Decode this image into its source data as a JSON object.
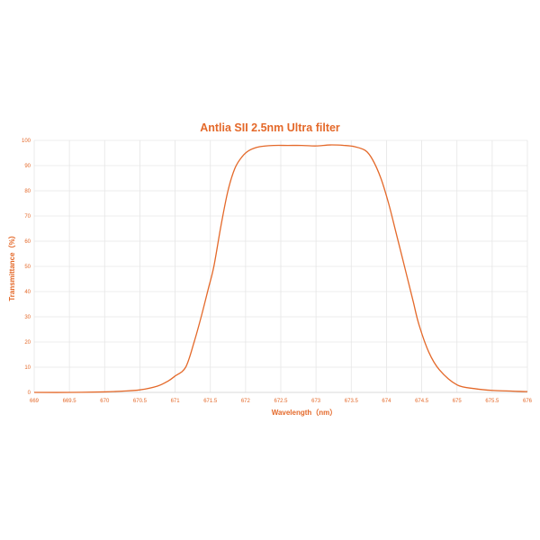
{
  "chart_data": {
    "type": "line",
    "title": "Antlia SII 2.5nm Ultra filter",
    "xlabel": "Wavelength（nm）",
    "ylabel": "Transmittance（%）",
    "xlim": [
      669,
      676
    ],
    "ylim": [
      0,
      100
    ],
    "grid": true,
    "legend": null,
    "x_ticks": [
      "669",
      "669.5",
      "670",
      "670.5",
      "671",
      "671.5",
      "672",
      "672.5",
      "673",
      "673.5",
      "674",
      "674.5",
      "675",
      "675.5",
      "676"
    ],
    "y_ticks": [
      "0",
      "10",
      "20",
      "30",
      "40",
      "50",
      "60",
      "70",
      "80",
      "90",
      "100"
    ],
    "series": [
      {
        "name": "Transmittance",
        "color": "#e4692a",
        "x": [
          669,
          669.5,
          670,
          670.25,
          670.5,
          670.75,
          670.9,
          671,
          671.15,
          671.27,
          671.37,
          671.47,
          671.55,
          671.65,
          671.75,
          671.85,
          671.95,
          672.05,
          672.2,
          672.4,
          672.6,
          672.8,
          673,
          673.2,
          673.4,
          673.55,
          673.7,
          673.8,
          673.92,
          674.03,
          674.13,
          674.22,
          674.3,
          674.38,
          674.46,
          674.6,
          674.75,
          675,
          675.25,
          675.5,
          676
        ],
        "y": [
          0,
          0,
          0.2,
          0.5,
          1,
          2.5,
          4.5,
          6.5,
          10,
          20,
          30,
          41,
          50,
          66,
          80,
          89,
          93.5,
          96,
          97.5,
          98,
          98,
          98,
          97.8,
          98.2,
          98,
          97.5,
          96,
          92.5,
          85,
          75,
          64,
          54,
          45,
          36,
          27,
          16,
          9,
          3,
          1.5,
          0.8,
          0.3
        ]
      }
    ]
  }
}
